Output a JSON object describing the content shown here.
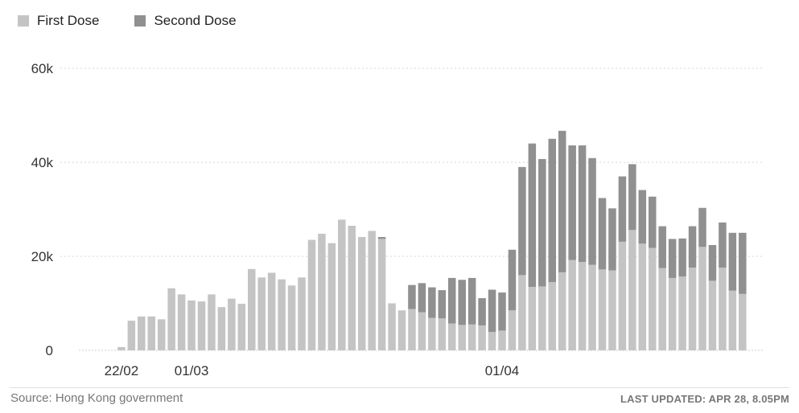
{
  "legend": {
    "first_label": "First Dose",
    "second_label": "Second Dose"
  },
  "colors": {
    "first": "#c4c4c4",
    "second": "#909090",
    "grid": "#d5d5d5",
    "axis": "#d0d0d0"
  },
  "footer": {
    "source": "Source: Hong Kong government",
    "updated": "LAST UPDATED: APR 28, 8.05PM"
  },
  "chart_data": {
    "type": "bar",
    "stacked": true,
    "ylim": [
      0,
      60000
    ],
    "yticks": [
      0,
      20000,
      40000,
      60000
    ],
    "ytick_labels": [
      "0",
      "20k",
      "40k",
      "60k"
    ],
    "grid": true,
    "legend_position": "top-left",
    "x_tick_labels": [
      {
        "index": 2,
        "label": "22/02"
      },
      {
        "index": 9,
        "label": "01/03"
      },
      {
        "index": 40,
        "label": "01/04"
      }
    ],
    "series": [
      {
        "name": "First Dose",
        "values": [
          0,
          0,
          700,
          6300,
          7200,
          7200,
          6600,
          13200,
          11900,
          10600,
          10400,
          11900,
          9200,
          11000,
          9900,
          17300,
          15500,
          16500,
          15100,
          13800,
          15500,
          23500,
          24800,
          22800,
          27800,
          26500,
          24100,
          25400,
          23700,
          10000,
          8500,
          8800,
          8100,
          6900,
          6800,
          5700,
          5400,
          5500,
          5300,
          3900,
          4200,
          8500,
          16000,
          13500,
          13600,
          14500,
          16600,
          19200,
          18800,
          18200,
          17200,
          17000,
          23100,
          25600,
          22700,
          21800,
          17500,
          15400,
          15700,
          17600,
          22000,
          14800,
          17600,
          12700,
          12000
        ]
      },
      {
        "name": "Second Dose",
        "values": [
          0,
          0,
          0,
          0,
          0,
          0,
          0,
          0,
          0,
          0,
          0,
          0,
          0,
          0,
          0,
          0,
          0,
          0,
          0,
          0,
          0,
          0,
          0,
          0,
          0,
          0,
          0,
          0,
          400,
          0,
          0,
          5100,
          6200,
          6500,
          6000,
          9700,
          9600,
          9900,
          5800,
          9000,
          8100,
          12900,
          23000,
          30500,
          27100,
          30500,
          30100,
          24400,
          24800,
          22700,
          15200,
          13200,
          13900,
          14000,
          11400,
          10900,
          8900,
          8300,
          8100,
          8800,
          8300,
          7600,
          9600,
          12300,
          13000
        ]
      }
    ]
  }
}
